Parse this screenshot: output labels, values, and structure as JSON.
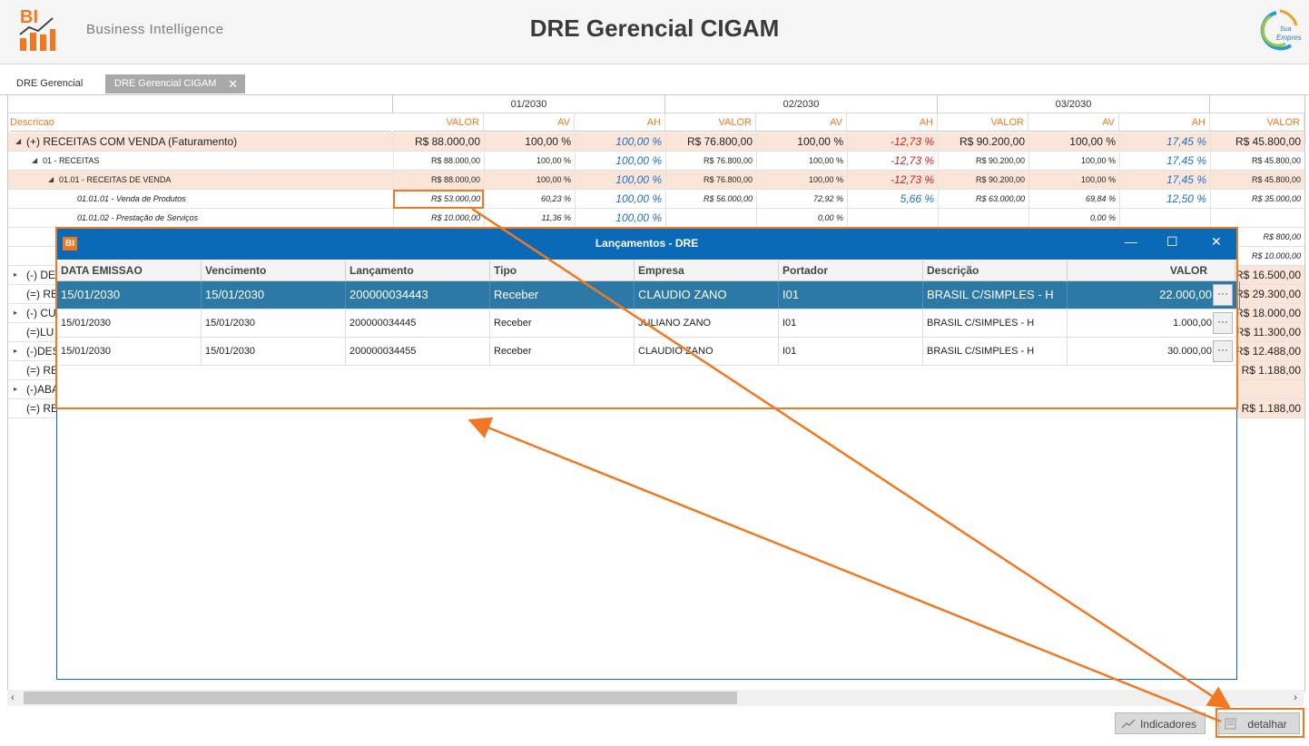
{
  "header": {
    "logo_text": "BI",
    "subtitle": "Business Intelligence",
    "title": "DRE Gerencial CIGAM",
    "brand_logo_text": "Sua Empresa"
  },
  "tabs": [
    {
      "label": "DRE Gerencial"
    },
    {
      "label": "DRE Gerencial CIGAM",
      "close": "✕"
    }
  ],
  "grid": {
    "desc_header": "Descricao",
    "months": [
      "01/2030",
      "02/2030",
      "03/2030"
    ],
    "col_headers": [
      "VALOR",
      "AV",
      "AH"
    ],
    "rows": [
      {
        "desc": "(+) RECEITAS COM VENDA (Faturamento)",
        "vals": [
          "R$ 88.000,00",
          "100,00 %",
          "100,00 %",
          "R$ 76.800,00",
          "100,00 %",
          "-12,73 %",
          "R$ 90.200,00",
          "100,00 %",
          "17,45 %",
          "R$ 45.800,00"
        ]
      },
      {
        "desc": "01 - RECEITAS",
        "vals": [
          "R$ 88.000,00",
          "100,00 %",
          "100,00 %",
          "R$ 76.800,00",
          "100,00 %",
          "-12,73 %",
          "R$ 90.200,00",
          "100,00 %",
          "17,45 %",
          "R$ 45.800,00"
        ]
      },
      {
        "desc": "01.01 - RECEITAS DE VENDA",
        "vals": [
          "R$ 88.000,00",
          "100,00 %",
          "100,00 %",
          "R$ 76.800,00",
          "100,00 %",
          "-12,73 %",
          "R$ 90.200,00",
          "100,00 %",
          "17,45 %",
          "R$ 45.800,00"
        ]
      },
      {
        "desc": "01.01.01 - Venda de Produtos",
        "vals": [
          "R$ 53.000,00",
          "60,23 %",
          "100,00 %",
          "R$ 56.000,00",
          "72,92 %",
          "5,66 %",
          "R$ 63.000,00",
          "69,84 %",
          "12,50 %",
          "R$ 35.000,00"
        ]
      },
      {
        "desc": "01.01.02 - Prestação de Serviços",
        "vals": [
          "R$ 10.000,00",
          "11,36 %",
          "100,00 %",
          "",
          "0,00 %",
          "",
          "",
          "0,00 %",
          "",
          ""
        ]
      }
    ],
    "partial_rows": [
      {
        "desc": "",
        "last": "R$ 800,00"
      },
      {
        "desc": "",
        "last": "R$ 10.000,00"
      },
      {
        "desc": "(-) DE",
        "last": "R$ 16.500,00"
      },
      {
        "desc": "(=) RE",
        "last": "R$ 29.300,00"
      },
      {
        "desc": "(-) CU",
        "last": "R$ 18.000,00"
      },
      {
        "desc": "(=)LU",
        "last": "R$ 11.300,00"
      },
      {
        "desc": "(-)DES",
        "last": "R$ 12.488,00"
      },
      {
        "desc": "(=) RE",
        "last": "R$ 1.188,00"
      },
      {
        "desc": "(-)ABA",
        "last": ""
      },
      {
        "desc": "(=) RE",
        "last": "R$ 1.188,00"
      }
    ]
  },
  "modal": {
    "icon": "BI",
    "title": "Lançamentos - DRE",
    "minimize": "—",
    "maximize": "☐",
    "close": "✕",
    "columns": [
      "DATA EMISSAO",
      "Vencimento",
      "Lançamento",
      "Tipo",
      "Empresa",
      "Portador",
      "Descrição",
      "VALOR"
    ],
    "rows": [
      [
        "15/01/2030",
        "15/01/2030",
        "200000034443",
        "Receber",
        "CLAUDIO ZANO",
        "I01",
        "BRASIL C/SIMPLES - H",
        "22.000,00"
      ],
      [
        "15/01/2030",
        "15/01/2030",
        "200000034445",
        "Receber",
        "JULIANO ZANO",
        "I01",
        "BRASIL C/SIMPLES - H",
        "1.000,00"
      ],
      [
        "15/01/2030",
        "15/01/2030",
        "200000034455",
        "Receber",
        "CLAUDIO ZANO",
        "I01",
        "BRASIL C/SIMPLES - H",
        "30.000,00"
      ]
    ],
    "row_button": "···"
  },
  "scroll": {
    "left": "‹",
    "right": "›"
  },
  "buttons": {
    "indicadores": "Indicadores",
    "detalhar": "detalhar"
  },
  "colors": {
    "accent": "#f07820",
    "modal_blue": "#0b6ab7",
    "selected_row": "#2c79a8",
    "highlight_row": "#fbe5d9"
  }
}
